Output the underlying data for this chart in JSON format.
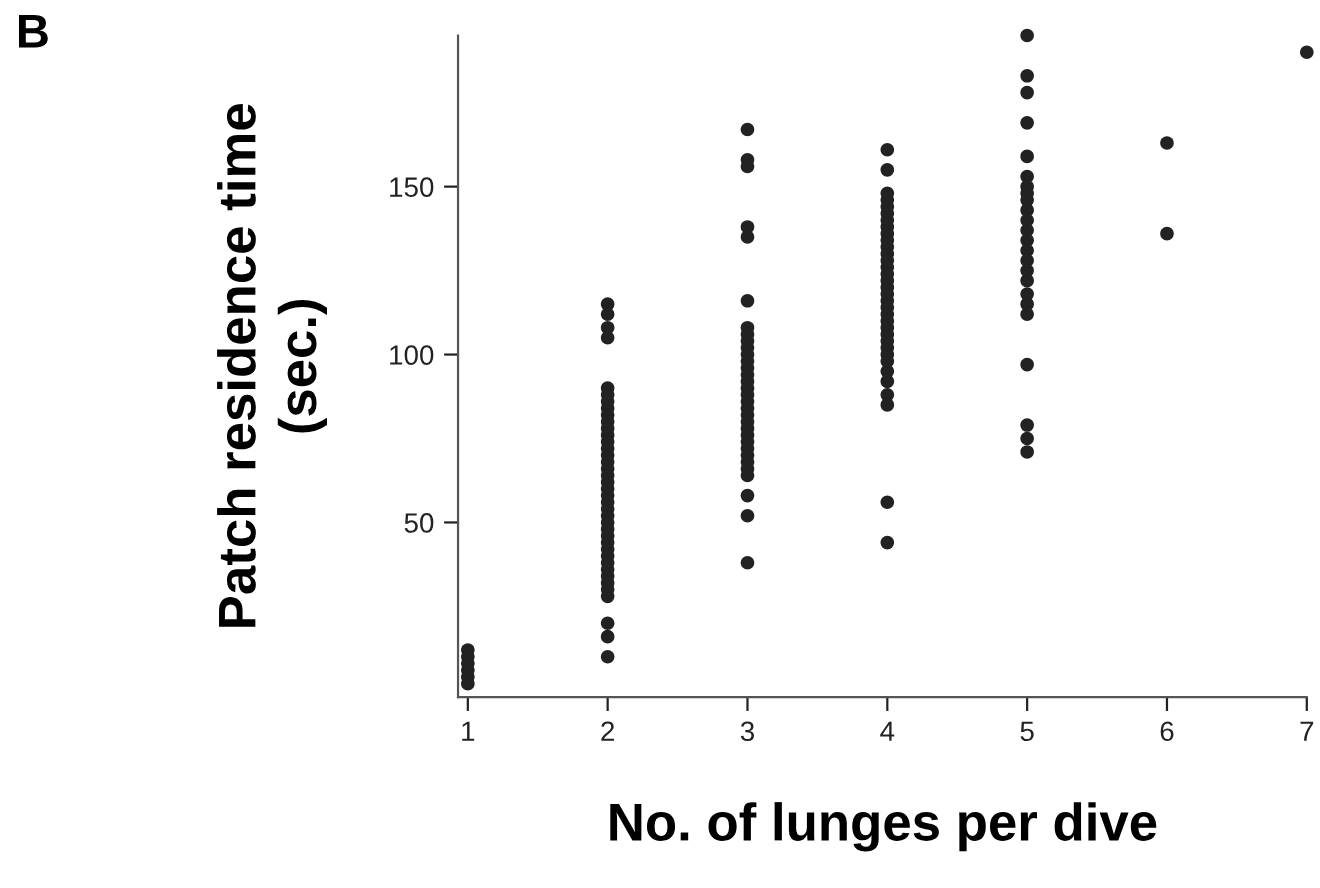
{
  "chart_data": {
    "type": "scatter",
    "title": "B",
    "xlabel": "No. of lunges per dive",
    "ylabel": "Patch residence time\n(sec.)",
    "series": [
      {
        "color": "#222222",
        "x": [
          1,
          1,
          1,
          1,
          1,
          1,
          2,
          2,
          2,
          2,
          2,
          2,
          2,
          2,
          2,
          2,
          2,
          2,
          2,
          2,
          2,
          2,
          2,
          2,
          2,
          2,
          2,
          2,
          2,
          2,
          2,
          2,
          2,
          2,
          2,
          2,
          2,
          2,
          2,
          2,
          2,
          2,
          2,
          2,
          2,
          3,
          3,
          3,
          3,
          3,
          3,
          3,
          3,
          3,
          3,
          3,
          3,
          3,
          3,
          3,
          3,
          3,
          3,
          3,
          3,
          3,
          3,
          3,
          3,
          3,
          3,
          3,
          3,
          3,
          3,
          3,
          3,
          4,
          4,
          4,
          4,
          4,
          4,
          4,
          4,
          4,
          4,
          4,
          4,
          4,
          4,
          4,
          4,
          4,
          4,
          4,
          4,
          4,
          4,
          4,
          4,
          4,
          4,
          4,
          4,
          4,
          4,
          4,
          4,
          4,
          4,
          5,
          5,
          5,
          5,
          5,
          5,
          5,
          5,
          5,
          5,
          5,
          5,
          5,
          5,
          5,
          5,
          5,
          5,
          5,
          5,
          5,
          5,
          5,
          5,
          6,
          6,
          7
        ],
        "values": [
          2,
          4,
          6,
          8,
          10,
          12,
          115,
          112,
          108,
          105,
          90,
          88,
          86,
          84,
          82,
          80,
          78,
          76,
          74,
          72,
          70,
          68,
          66,
          64,
          62,
          60,
          58,
          56,
          54,
          52,
          50,
          48,
          46,
          44,
          42,
          40,
          38,
          36,
          34,
          32,
          30,
          28,
          20,
          16,
          10,
          167,
          158,
          156,
          138,
          135,
          116,
          108,
          106,
          104,
          102,
          100,
          98,
          96,
          94,
          92,
          90,
          88,
          86,
          84,
          82,
          80,
          78,
          76,
          74,
          72,
          70,
          68,
          66,
          64,
          58,
          52,
          38,
          161,
          155,
          148,
          146,
          144,
          142,
          140,
          138,
          136,
          134,
          132,
          130,
          128,
          126,
          124,
          122,
          120,
          118,
          116,
          114,
          112,
          110,
          108,
          106,
          104,
          102,
          100,
          98,
          95,
          92,
          88,
          85,
          56,
          44,
          195,
          183,
          178,
          169,
          159,
          153,
          150,
          148,
          146,
          143,
          140,
          137,
          134,
          131,
          128,
          125,
          122,
          118,
          115,
          112,
          97,
          79,
          75,
          71,
          163,
          136,
          190
        ]
      }
    ],
    "xlim": [
      0.93,
      7
    ],
    "xticks": [
      1,
      2,
      3,
      4,
      5,
      6,
      7
    ],
    "ylim": [
      -2,
      195
    ],
    "yticks": [
      50,
      100,
      150
    ],
    "marker": "circle",
    "grid": false,
    "legend": false
  }
}
